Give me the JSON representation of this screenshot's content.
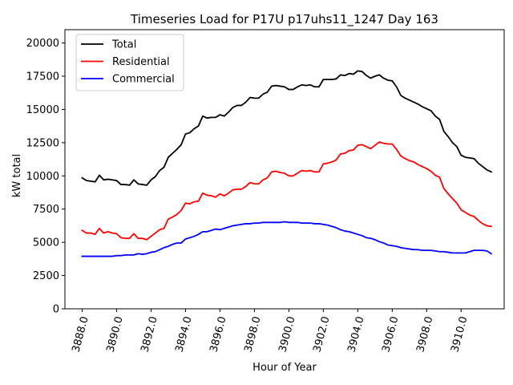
{
  "chart_data": {
    "type": "line",
    "title": "Timeseries Load for P17U p17uhs11_1247  Day 163",
    "xlabel": "Hour of Year",
    "ylabel": "kW total",
    "xlim": [
      3887.0,
      3912.5
    ],
    "ylim": [
      0,
      21000
    ],
    "xticks": [
      3888,
      3890,
      3892,
      3894,
      3896,
      3898,
      3900,
      3902,
      3904,
      3906,
      3908,
      3910
    ],
    "xtick_labels": [
      "3888.0",
      "3890.0",
      "3892.0",
      "3894.0",
      "3896.0",
      "3898.0",
      "3900.0",
      "3902.0",
      "3904.0",
      "3906.0",
      "3908.0",
      "3910.0"
    ],
    "yticks": [
      0,
      2500,
      5000,
      7500,
      10000,
      12500,
      15000,
      17500,
      20000
    ],
    "ytick_labels": [
      "0",
      "2500",
      "5000",
      "7500",
      "10000",
      "12500",
      "15000",
      "17500",
      "20000"
    ],
    "legend_position": "top-left",
    "x": [
      3888.0,
      3888.25,
      3888.5,
      3888.75,
      3889.0,
      3889.25,
      3889.5,
      3889.75,
      3890.0,
      3890.25,
      3890.5,
      3890.75,
      3891.0,
      3891.25,
      3891.5,
      3891.75,
      3892.0,
      3892.25,
      3892.5,
      3892.75,
      3893.0,
      3893.25,
      3893.5,
      3893.75,
      3894.0,
      3894.25,
      3894.5,
      3894.75,
      3895.0,
      3895.25,
      3895.5,
      3895.75,
      3896.0,
      3896.25,
      3896.5,
      3896.75,
      3897.0,
      3897.25,
      3897.5,
      3897.75,
      3898.0,
      3898.25,
      3898.5,
      3898.75,
      3899.0,
      3899.25,
      3899.5,
      3899.75,
      3900.0,
      3900.25,
      3900.5,
      3900.75,
      3901.0,
      3901.25,
      3901.5,
      3901.75,
      3902.0,
      3902.25,
      3902.5,
      3902.75,
      3903.0,
      3903.25,
      3903.5,
      3903.75,
      3904.0,
      3904.25,
      3904.5,
      3904.75,
      3905.0,
      3905.25,
      3905.5,
      3905.75,
      3906.0,
      3906.25,
      3906.5,
      3906.75,
      3907.0,
      3907.25,
      3907.5,
      3907.75,
      3908.0,
      3908.25,
      3908.5,
      3908.75,
      3909.0,
      3909.25,
      3909.5,
      3909.75,
      3910.0,
      3910.25,
      3910.5,
      3910.75,
      3911.0,
      3911.25,
      3911.5,
      3911.75
    ],
    "series": [
      {
        "name": "Total",
        "color": "#000000",
        "values": [
          9850,
          9650,
          9600,
          9550,
          10050,
          9700,
          9750,
          9700,
          9650,
          9350,
          9350,
          9300,
          9700,
          9400,
          9350,
          9300,
          9700,
          9950,
          10400,
          10650,
          11400,
          11700,
          12000,
          12350,
          13150,
          13250,
          13550,
          13750,
          14500,
          14350,
          14400,
          14400,
          14600,
          14500,
          14800,
          15150,
          15300,
          15300,
          15550,
          15900,
          15850,
          15850,
          16150,
          16300,
          16750,
          16800,
          16750,
          16700,
          16500,
          16500,
          16700,
          16850,
          16800,
          16850,
          16700,
          16700,
          17250,
          17250,
          17250,
          17300,
          17600,
          17550,
          17700,
          17650,
          17900,
          17850,
          17550,
          17350,
          17500,
          17600,
          17350,
          17200,
          17150,
          16700,
          16050,
          15850,
          15700,
          15550,
          15400,
          15200,
          15050,
          14900,
          14500,
          14250,
          13350,
          12950,
          12500,
          12200,
          11550,
          11400,
          11350,
          11300,
          10950,
          10700,
          10450,
          10300
        ]
      },
      {
        "name": "Residential",
        "color": "#ff0000",
        "values": [
          5900,
          5700,
          5700,
          5600,
          6050,
          5700,
          5800,
          5700,
          5650,
          5350,
          5300,
          5300,
          5650,
          5300,
          5300,
          5200,
          5450,
          5700,
          5950,
          6050,
          6750,
          6900,
          7100,
          7400,
          7950,
          7900,
          8050,
          8100,
          8700,
          8550,
          8500,
          8400,
          8650,
          8500,
          8700,
          8950,
          9000,
          9000,
          9200,
          9500,
          9400,
          9400,
          9700,
          9850,
          10300,
          10350,
          10250,
          10200,
          10000,
          10000,
          10200,
          10400,
          10350,
          10400,
          10300,
          10300,
          10900,
          10950,
          11050,
          11200,
          11650,
          11700,
          11900,
          11950,
          12300,
          12350,
          12200,
          12050,
          12300,
          12550,
          12450,
          12400,
          12400,
          12000,
          11500,
          11300,
          11150,
          11050,
          10850,
          10700,
          10550,
          10350,
          10050,
          9900,
          9050,
          8650,
          8300,
          7950,
          7450,
          7250,
          7050,
          6950,
          6650,
          6400,
          6250,
          6200
        ]
      },
      {
        "name": "Commercial",
        "color": "#0000ff",
        "values": [
          3950,
          3950,
          3950,
          3950,
          3950,
          3950,
          3950,
          3950,
          4000,
          4000,
          4050,
          4050,
          4050,
          4150,
          4100,
          4150,
          4250,
          4300,
          4450,
          4600,
          4700,
          4850,
          4950,
          4950,
          5250,
          5350,
          5450,
          5600,
          5800,
          5800,
          5900,
          6000,
          5950,
          6050,
          6150,
          6250,
          6300,
          6350,
          6400,
          6400,
          6450,
          6450,
          6500,
          6500,
          6500,
          6500,
          6500,
          6550,
          6500,
          6500,
          6500,
          6450,
          6450,
          6450,
          6400,
          6400,
          6350,
          6300,
          6200,
          6100,
          5950,
          5850,
          5800,
          5700,
          5600,
          5500,
          5350,
          5300,
          5200,
          5050,
          4950,
          4800,
          4750,
          4700,
          4600,
          4550,
          4500,
          4450,
          4450,
          4400,
          4400,
          4400,
          4350,
          4300,
          4300,
          4250,
          4200,
          4200,
          4200,
          4200,
          4300,
          4400,
          4400,
          4400,
          4350,
          4150
        ]
      }
    ]
  }
}
